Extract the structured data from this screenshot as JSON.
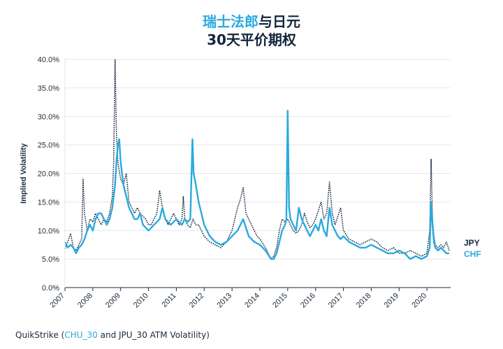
{
  "title": {
    "line1_accent": "瑞士法郎",
    "line1_rest": "与日元",
    "line2": "30天平价期权"
  },
  "source": {
    "prefix": "QuikStrike (",
    "link": "CHU_30",
    "suffix": " and JPU_30 ATM Volatility)"
  },
  "colors": {
    "chf": "#2aa9df",
    "jpy": "#14253a",
    "grid": "#e3e6ea"
  },
  "chart_data": {
    "type": "line",
    "ylabel": "Implied Volatility",
    "xlabel": "",
    "ylim": [
      0,
      40
    ],
    "yticks": [
      "0.0%",
      "5.0%",
      "10.0%",
      "15.0%",
      "20.0%",
      "25.0%",
      "30.0%",
      "35.0%",
      "40.0%"
    ],
    "ytick_values": [
      0,
      5,
      10,
      15,
      20,
      25,
      30,
      35,
      40
    ],
    "xlim": [
      2007.0,
      2020.85
    ],
    "xticks": [
      "2007",
      "2008",
      "2009",
      "2010",
      "2011",
      "2012",
      "2013",
      "2014",
      "2015",
      "2016",
      "2017",
      "2018",
      "2019",
      "2020"
    ],
    "xtick_values": [
      2007,
      2008,
      2009,
      2010,
      2011,
      2012,
      2013,
      2014,
      2015,
      2016,
      2017,
      2018,
      2019,
      2020
    ],
    "grid": "horizontal",
    "legend": "right-end labels",
    "series": [
      {
        "name": "JPY",
        "style": "dotted",
        "x": [
          2007.0,
          2007.1,
          2007.2,
          2007.3,
          2007.4,
          2007.5,
          2007.6,
          2007.65,
          2007.7,
          2007.8,
          2007.9,
          2008.0,
          2008.1,
          2008.2,
          2008.3,
          2008.4,
          2008.5,
          2008.6,
          2008.7,
          2008.75,
          2008.8,
          2008.85,
          2008.9,
          2009.0,
          2009.1,
          2009.2,
          2009.3,
          2009.4,
          2009.5,
          2009.6,
          2009.7,
          2009.8,
          2009.9,
          2010.0,
          2010.1,
          2010.2,
          2010.3,
          2010.4,
          2010.5,
          2010.6,
          2010.7,
          2010.8,
          2010.9,
          2011.0,
          2011.1,
          2011.2,
          2011.25,
          2011.3,
          2011.4,
          2011.5,
          2011.6,
          2011.7,
          2011.8,
          2011.9,
          2012.0,
          2012.2,
          2012.4,
          2012.6,
          2012.8,
          2013.0,
          2013.2,
          2013.3,
          2013.4,
          2013.5,
          2013.6,
          2013.7,
          2013.8,
          2013.9,
          2014.0,
          2014.2,
          2014.4,
          2014.5,
          2014.6,
          2014.7,
          2014.8,
          2014.9,
          2015.0,
          2015.1,
          2015.2,
          2015.3,
          2015.4,
          2015.5,
          2015.6,
          2015.7,
          2015.8,
          2015.9,
          2016.0,
          2016.1,
          2016.2,
          2016.3,
          2016.4,
          2016.5,
          2016.6,
          2016.7,
          2016.8,
          2016.9,
          2017.0,
          2017.2,
          2017.4,
          2017.6,
          2017.8,
          2018.0,
          2018.2,
          2018.4,
          2018.6,
          2018.8,
          2019.0,
          2019.2,
          2019.4,
          2019.6,
          2019.8,
          2020.0,
          2020.1,
          2020.15,
          2020.2,
          2020.25,
          2020.3,
          2020.4,
          2020.5,
          2020.6,
          2020.7,
          2020.8
        ],
        "y": [
          6.8,
          8.0,
          9.5,
          7.0,
          6.5,
          7.5,
          8.5,
          19.0,
          13.0,
          10.0,
          12.0,
          11.5,
          13.0,
          12.0,
          11.0,
          12.0,
          11.5,
          13.0,
          16.0,
          22.0,
          40.0,
          27.0,
          22.0,
          19.0,
          18.0,
          20.0,
          15.0,
          14.0,
          13.0,
          14.0,
          13.0,
          12.5,
          12.0,
          11.0,
          11.0,
          12.0,
          13.0,
          17.0,
          14.0,
          12.0,
          11.0,
          12.0,
          13.0,
          12.0,
          11.0,
          12.0,
          16.0,
          12.0,
          11.0,
          10.5,
          12.0,
          11.0,
          11.0,
          10.0,
          9.0,
          8.0,
          7.5,
          7.0,
          8.0,
          10.0,
          14.0,
          15.5,
          17.5,
          13.0,
          12.0,
          11.0,
          10.0,
          9.0,
          8.5,
          7.0,
          5.0,
          5.5,
          7.0,
          10.0,
          12.0,
          11.5,
          12.0,
          11.0,
          10.0,
          9.5,
          10.0,
          11.0,
          13.0,
          11.5,
          10.5,
          11.0,
          12.0,
          13.5,
          15.0,
          12.0,
          13.0,
          18.5,
          13.0,
          11.0,
          12.5,
          14.0,
          10.0,
          8.5,
          8.0,
          7.5,
          8.0,
          8.5,
          8.0,
          7.0,
          6.5,
          7.0,
          6.0,
          6.0,
          6.5,
          6.0,
          5.5,
          6.0,
          10.0,
          22.5,
          12.0,
          9.0,
          7.5,
          7.0,
          7.5,
          7.0,
          8.0,
          6.5
        ]
      },
      {
        "name": "CHF",
        "style": "solid",
        "x": [
          2007.0,
          2007.1,
          2007.2,
          2007.3,
          2007.4,
          2007.5,
          2007.6,
          2007.7,
          2007.8,
          2007.9,
          2008.0,
          2008.1,
          2008.2,
          2008.3,
          2008.4,
          2008.5,
          2008.6,
          2008.7,
          2008.8,
          2008.85,
          2008.9,
          2008.95,
          2009.0,
          2009.1,
          2009.2,
          2009.3,
          2009.4,
          2009.5,
          2009.6,
          2009.7,
          2009.8,
          2009.9,
          2010.0,
          2010.2,
          2010.4,
          2010.5,
          2010.6,
          2010.8,
          2011.0,
          2011.2,
          2011.3,
          2011.4,
          2011.5,
          2011.58,
          2011.62,
          2011.7,
          2011.8,
          2011.9,
          2012.0,
          2012.2,
          2012.4,
          2012.6,
          2012.8,
          2013.0,
          2013.2,
          2013.4,
          2013.6,
          2013.8,
          2014.0,
          2014.2,
          2014.4,
          2014.5,
          2014.6,
          2014.7,
          2014.8,
          2014.9,
          2014.95,
          2015.0,
          2015.05,
          2015.1,
          2015.2,
          2015.3,
          2015.4,
          2015.5,
          2015.6,
          2015.7,
          2015.8,
          2015.9,
          2016.0,
          2016.1,
          2016.2,
          2016.3,
          2016.4,
          2016.5,
          2016.6,
          2016.7,
          2016.8,
          2016.9,
          2017.0,
          2017.2,
          2017.4,
          2017.6,
          2017.8,
          2018.0,
          2018.2,
          2018.4,
          2018.6,
          2018.8,
          2019.0,
          2019.2,
          2019.4,
          2019.6,
          2019.8,
          2020.0,
          2020.1,
          2020.15,
          2020.2,
          2020.25,
          2020.3,
          2020.4,
          2020.5,
          2020.6,
          2020.7,
          2020.8
        ],
        "y": [
          8.0,
          7.0,
          7.5,
          7.0,
          6.0,
          7.0,
          7.5,
          8.5,
          10.0,
          11.0,
          10.0,
          12.0,
          13.0,
          13.0,
          12.0,
          11.0,
          12.0,
          14.0,
          18.0,
          22.0,
          25.0,
          26.0,
          22.0,
          18.0,
          16.0,
          14.0,
          13.0,
          12.0,
          12.0,
          13.0,
          11.0,
          10.5,
          10.0,
          11.0,
          12.0,
          14.0,
          12.0,
          11.0,
          12.0,
          11.0,
          12.0,
          11.5,
          12.0,
          26.0,
          20.0,
          18.0,
          15.0,
          13.0,
          11.0,
          9.0,
          8.0,
          7.5,
          8.0,
          9.0,
          10.0,
          12.0,
          9.0,
          8.0,
          7.5,
          6.5,
          5.0,
          5.0,
          6.0,
          8.0,
          10.0,
          11.0,
          12.0,
          31.0,
          14.0,
          12.0,
          11.0,
          10.0,
          14.0,
          12.0,
          11.0,
          10.0,
          9.0,
          10.0,
          11.0,
          10.0,
          12.0,
          10.0,
          9.0,
          14.0,
          11.0,
          10.0,
          9.0,
          8.5,
          9.0,
          8.0,
          7.5,
          7.0,
          7.0,
          7.5,
          7.0,
          6.5,
          6.0,
          6.0,
          6.5,
          6.0,
          5.0,
          5.5,
          5.0,
          5.5,
          7.0,
          15.0,
          11.0,
          8.0,
          7.0,
          6.5,
          7.0,
          6.5,
          6.0,
          6.0
        ]
      }
    ]
  }
}
